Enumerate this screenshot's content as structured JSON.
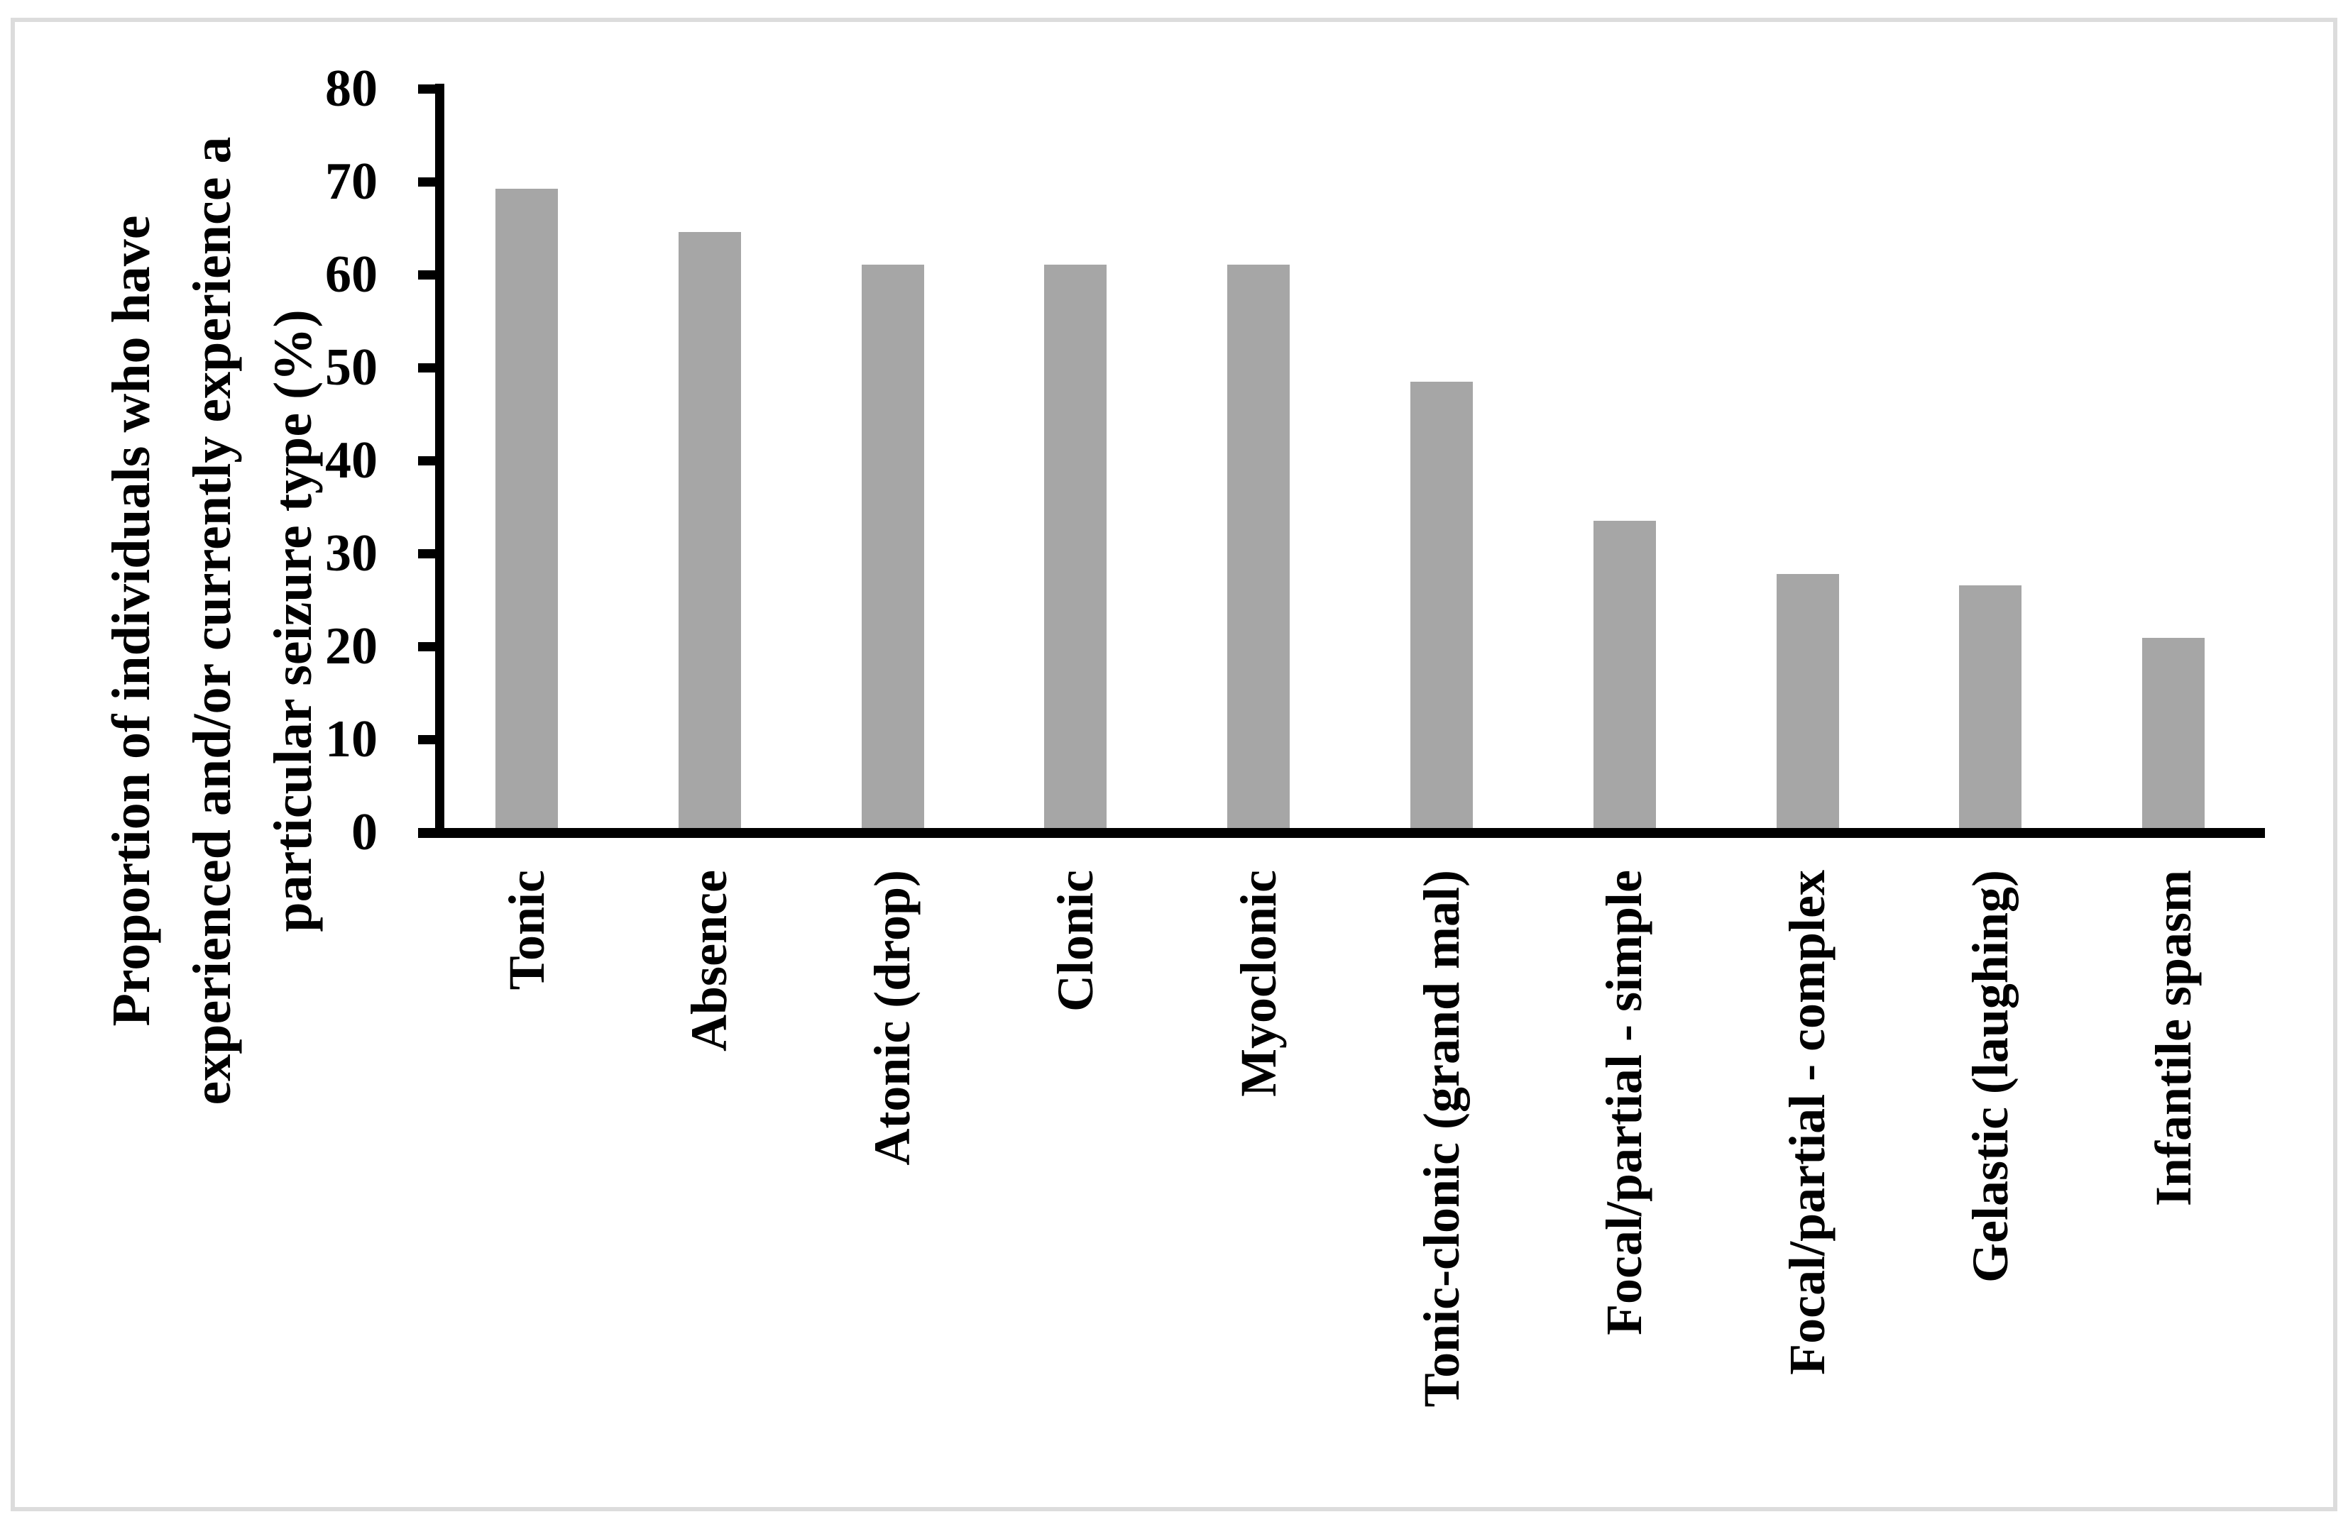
{
  "figure": {
    "background_color": "#ffffff",
    "frame_border_color": "#dcdcdc",
    "axis_color": "#000000",
    "text_color": "#000000"
  },
  "chart_data": {
    "type": "bar",
    "title": "",
    "categories": [
      "Tonic",
      "Absence",
      "Atonic (drop)",
      "Clonic",
      "Myoclonic",
      "Tonic-clonic (grand mal)",
      "Focal/partial - simple",
      "Focal/partial - complex",
      "Gelastic (laughing)",
      "Infantile spasm"
    ],
    "values": [
      69.2,
      64.6,
      61.1,
      61.1,
      61.1,
      48.5,
      33.5,
      27.8,
      26.6,
      20.9
    ],
    "xlabel": "",
    "ylabel": "Proportion of individuals who have\nexperienced and/or currently experience a\nparticular seizure type (%)",
    "yticks": [
      0,
      10,
      20,
      30,
      40,
      50,
      60,
      70,
      80
    ],
    "ylim": [
      0,
      80
    ],
    "bar_color": "#a6a6a6",
    "grid": false,
    "legend": null,
    "x_label_rotation_degrees": -90,
    "y_label_rotation_degrees": -90
  }
}
